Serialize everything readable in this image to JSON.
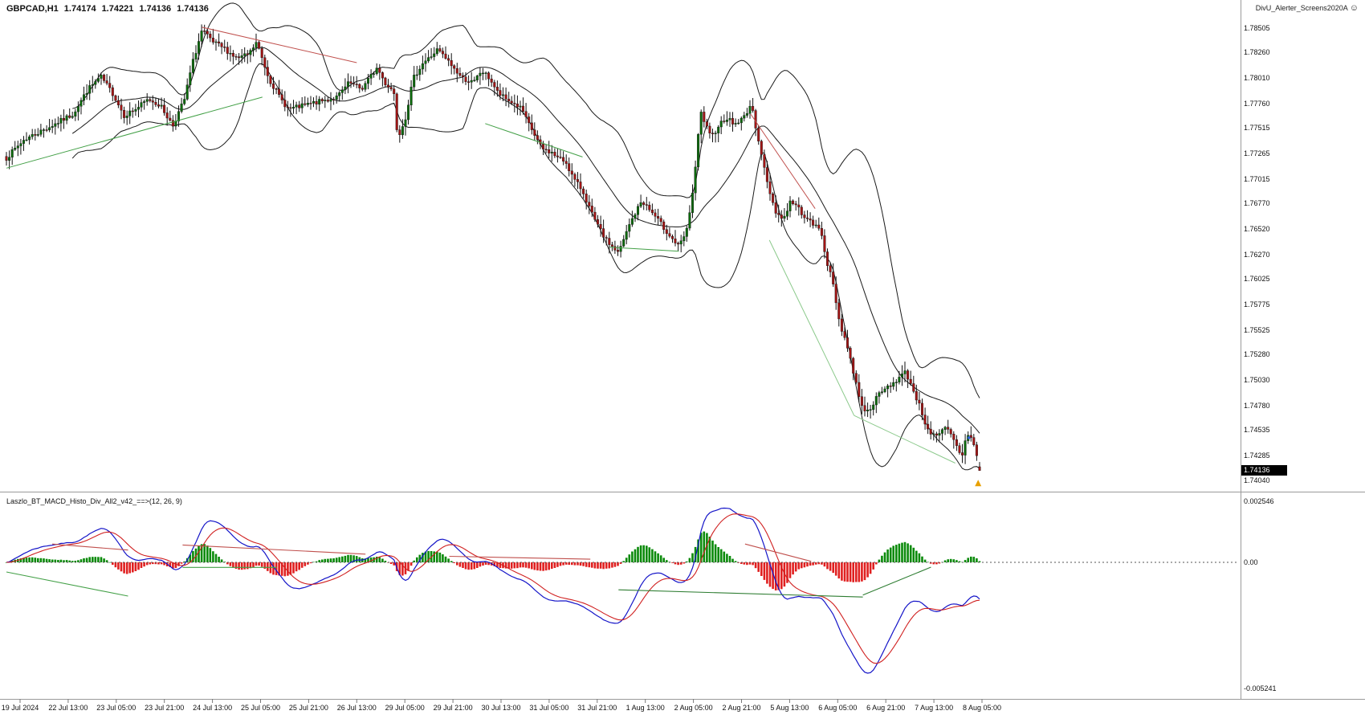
{
  "header": {
    "symbol_timeframe": "GBPCAD,H1",
    "open": "1.74174",
    "high": "1.74221",
    "low": "1.74136",
    "close": "1.74136",
    "indicator_name": "DivU_Alerter_Screens2020A",
    "indicator_icon": "☺"
  },
  "price_axis": {
    "labels": [
      "1.78505",
      "1.78260",
      "1.78010",
      "1.77760",
      "1.77515",
      "1.77265",
      "1.77015",
      "1.76770",
      "1.76520",
      "1.76270",
      "1.76025",
      "1.75775",
      "1.75525",
      "1.75280",
      "1.75030",
      "1.74780",
      "1.74535",
      "1.74285",
      "1.74040"
    ],
    "current_price": "1.74136"
  },
  "macd_panel": {
    "label": "Laszlo_BT_MACD_Histo_Div_All2_v42_==>(12, 26, 9)",
    "axis_labels": {
      "max": "0.002546",
      "zero": "0.00",
      "min": "-0.005241"
    }
  },
  "time_axis": {
    "labels": [
      "19 Jul 2024",
      "22 Jul 13:00",
      "23 Jul 05:00",
      "23 Jul 21:00",
      "24 Jul 13:00",
      "25 Jul 05:00",
      "25 Jul 21:00",
      "26 Jul 13:00",
      "29 Jul 05:00",
      "29 Jul 21:00",
      "30 Jul 13:00",
      "31 Jul 05:00",
      "31 Jul 21:00",
      "1 Aug 13:00",
      "2 Aug 05:00",
      "2 Aug 21:00",
      "5 Aug 13:00",
      "6 Aug 05:00",
      "6 Aug 21:00",
      "7 Aug 13:00",
      "8 Aug 05:00"
    ]
  },
  "colors": {
    "bull": "#0c6b0c",
    "bear": "#a31515",
    "wick": "#111111",
    "bollinger": "#1a1a1a",
    "macd_line": "#1515c8",
    "signal_line": "#d02020",
    "hist_up": "#0a8a0a",
    "hist_down": "#e02020",
    "zero_line": "#555555",
    "separator": "#9a9a9a",
    "badge_bg": "#000000",
    "badge_text": "#ffffff"
  },
  "chart_data": {
    "type": "candlestick",
    "symbol": "GBPCAD",
    "timeframe": "H1",
    "title": "GBPCAD,H1 1.74174 1.74221 1.74136 1.74136",
    "grid": false,
    "current": {
      "open": 1.74174,
      "high": 1.74221,
      "low": 1.74136,
      "close": 1.74136
    },
    "price_range": [
      1.7396,
      1.7862
    ],
    "bars_rendered": 340,
    "close_path": [
      [
        0,
        1.7722
      ],
      [
        0.018,
        1.774
      ],
      [
        0.043,
        1.7752
      ],
      [
        0.068,
        1.7765
      ],
      [
        0.084,
        1.779
      ],
      [
        0.097,
        1.7802
      ],
      [
        0.109,
        1.7786
      ],
      [
        0.121,
        1.7764
      ],
      [
        0.134,
        1.7771
      ],
      [
        0.146,
        1.778
      ],
      [
        0.158,
        1.7774
      ],
      [
        0.171,
        1.7754
      ],
      [
        0.183,
        1.778
      ],
      [
        0.191,
        1.7815
      ],
      [
        0.201,
        1.7848
      ],
      [
        0.212,
        1.7836
      ],
      [
        0.224,
        1.783
      ],
      [
        0.237,
        1.782
      ],
      [
        0.249,
        1.7824
      ],
      [
        0.257,
        1.7836
      ],
      [
        0.27,
        1.78
      ],
      [
        0.282,
        1.778
      ],
      [
        0.29,
        1.777
      ],
      [
        0.303,
        1.7773
      ],
      [
        0.315,
        1.7776
      ],
      [
        0.328,
        1.7779
      ],
      [
        0.34,
        1.7782
      ],
      [
        0.352,
        1.7796
      ],
      [
        0.365,
        1.779
      ],
      [
        0.373,
        1.7801
      ],
      [
        0.381,
        1.7811
      ],
      [
        0.389,
        1.7796
      ],
      [
        0.398,
        1.7788
      ],
      [
        0.402,
        1.7742
      ],
      [
        0.41,
        1.7762
      ],
      [
        0.418,
        1.78
      ],
      [
        0.427,
        1.7815
      ],
      [
        0.435,
        1.7821
      ],
      [
        0.443,
        1.7829
      ],
      [
        0.455,
        1.7816
      ],
      [
        0.468,
        1.7801
      ],
      [
        0.48,
        1.7796
      ],
      [
        0.488,
        1.7808
      ],
      [
        0.497,
        1.78
      ],
      [
        0.505,
        1.7786
      ],
      [
        0.513,
        1.778
      ],
      [
        0.521,
        1.7776
      ],
      [
        0.53,
        1.777
      ],
      [
        0.534,
        1.776
      ],
      [
        0.542,
        1.7746
      ],
      [
        0.55,
        1.7731
      ],
      [
        0.559,
        1.7728
      ],
      [
        0.567,
        1.7722
      ],
      [
        0.575,
        1.7718
      ],
      [
        0.583,
        1.7701
      ],
      [
        0.592,
        1.769
      ],
      [
        0.604,
        1.7661
      ],
      [
        0.616,
        1.7641
      ],
      [
        0.629,
        1.7628
      ],
      [
        0.641,
        1.7658
      ],
      [
        0.653,
        1.768
      ],
      [
        0.666,
        1.7665
      ],
      [
        0.678,
        1.765
      ],
      [
        0.691,
        1.7634
      ],
      [
        0.699,
        1.765
      ],
      [
        0.707,
        1.77
      ],
      [
        0.713,
        1.7768
      ],
      [
        0.724,
        1.7741
      ],
      [
        0.732,
        1.7755
      ],
      [
        0.74,
        1.7762
      ],
      [
        0.748,
        1.7755
      ],
      [
        0.757,
        1.7761
      ],
      [
        0.765,
        1.7775
      ],
      [
        0.773,
        1.774
      ],
      [
        0.781,
        1.77
      ],
      [
        0.79,
        1.767
      ],
      [
        0.798,
        1.7661
      ],
      [
        0.806,
        1.768
      ],
      [
        0.814,
        1.7672
      ],
      [
        0.823,
        1.7661
      ],
      [
        0.831,
        1.7655
      ],
      [
        0.837,
        1.765
      ],
      [
        0.843,
        1.762
      ],
      [
        0.85,
        1.7595
      ],
      [
        0.856,
        1.756
      ],
      [
        0.863,
        1.754
      ],
      [
        0.868,
        1.752
      ],
      [
        0.873,
        1.75
      ],
      [
        0.878,
        1.7481
      ],
      [
        0.884,
        1.747
      ],
      [
        0.891,
        1.7481
      ],
      [
        0.898,
        1.749
      ],
      [
        0.904,
        1.7495
      ],
      [
        0.911,
        1.75
      ],
      [
        0.917,
        1.7505
      ],
      [
        0.924,
        1.7511
      ],
      [
        0.931,
        1.7495
      ],
      [
        0.937,
        1.7481
      ],
      [
        0.944,
        1.7461
      ],
      [
        0.95,
        1.745
      ],
      [
        0.957,
        1.7446
      ],
      [
        0.964,
        1.7456
      ],
      [
        0.97,
        1.745
      ],
      [
        0.977,
        1.7436
      ],
      [
        0.982,
        1.7428
      ],
      [
        0.987,
        1.745
      ],
      [
        0.992,
        1.7447
      ],
      [
        0.997,
        1.7428
      ],
      [
        1,
        1.74136
      ]
    ],
    "indicators": [
      {
        "name": "Bollinger Bands",
        "period": 24,
        "deviation": 2
      },
      {
        "name": "MACD Histogram Divergence",
        "fast": 12,
        "slow": 26,
        "signal": 9,
        "range": [
          -0.0056,
          0.0028
        ]
      }
    ],
    "divergence_lines_price": [
      {
        "color": "#c0504d",
        "points": [
          [
            0.201,
            1.7851
          ],
          [
            0.36,
            1.7816
          ]
        ]
      },
      {
        "color": "#43a047",
        "points": [
          [
            0.0,
            1.7712
          ],
          [
            0.263,
            1.7782
          ]
        ]
      },
      {
        "color": "#43a047",
        "points": [
          [
            0.492,
            1.7756
          ],
          [
            0.592,
            1.7723
          ]
        ]
      },
      {
        "color": "#43a047",
        "points": [
          [
            0.62,
            1.7634
          ],
          [
            0.691,
            1.763
          ]
        ]
      },
      {
        "color": "#c0504d",
        "points": [
          [
            0.765,
            1.7765
          ],
          [
            0.831,
            1.7672
          ]
        ]
      },
      {
        "color": "#8bc98b",
        "points": [
          [
            0.784,
            1.7641
          ],
          [
            0.871,
            1.7468
          ]
        ]
      },
      {
        "color": "#8bc98b",
        "points": [
          [
            0.871,
            1.7468
          ],
          [
            0.975,
            1.7421
          ]
        ]
      }
    ],
    "divergence_lines_macd": [
      {
        "color": "#43a047",
        "points": [
          [
            0.0,
            -0.0004
          ],
          [
            0.125,
            -0.0014
          ]
        ]
      },
      {
        "color": "#c0504d",
        "points": [
          [
            0.047,
            0.00076
          ],
          [
            0.125,
            0.00051
          ]
        ]
      },
      {
        "color": "#c0504d",
        "points": [
          [
            0.181,
            0.00072
          ],
          [
            0.369,
            0.00034
          ]
        ]
      },
      {
        "color": "#43a047",
        "points": [
          [
            0.181,
            -0.00021
          ],
          [
            0.278,
            -0.00021
          ]
        ]
      },
      {
        "color": "#c0504d",
        "points": [
          [
            0.455,
            0.00025
          ],
          [
            0.6,
            0.00013
          ]
        ]
      },
      {
        "color": "#c0504d",
        "points": [
          [
            0.759,
            0.00076
          ],
          [
            0.827,
            4e-05
          ]
        ]
      },
      {
        "color": "#2e7d32",
        "points": [
          [
            0.629,
            -0.00114
          ],
          [
            0.88,
            -0.00144
          ]
        ]
      },
      {
        "color": "#2e7d32",
        "points": [
          [
            0.88,
            -0.00136
          ],
          [
            0.95,
            -0.0002
          ]
        ]
      }
    ],
    "markers": [
      {
        "type": "arrow-up",
        "color": "#e8a000",
        "f": 0.9985,
        "price": 1.74045
      },
      {
        "type": "dot",
        "color": "#2b5cd8",
        "f": 0.989,
        "price": 1.7446
      }
    ]
  }
}
